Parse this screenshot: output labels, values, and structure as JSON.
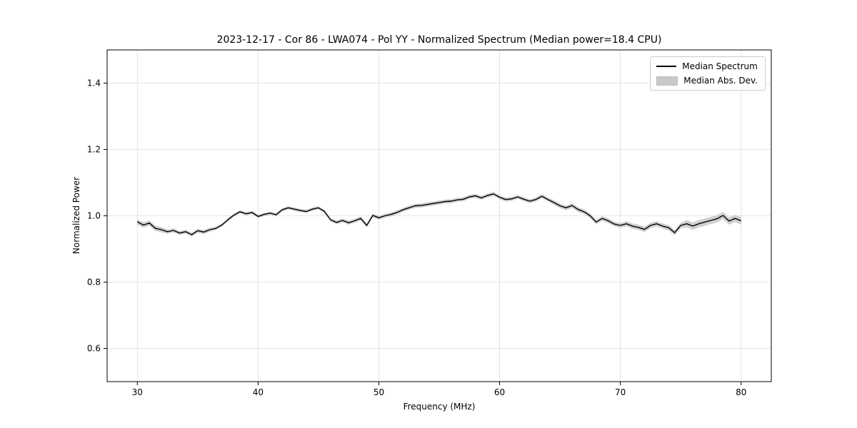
{
  "chart_data": {
    "type": "line",
    "title": "2023-12-17 - Cor 86 - LWA074 - Pol YY - Normalized Spectrum (Median power=18.4 CPU)",
    "xlabel": "Frequency (MHz)",
    "ylabel": "Normalized Power",
    "xlim": [
      27.5,
      82.5
    ],
    "ylim": [
      0.5,
      1.5
    ],
    "xtick_values": [
      30,
      40,
      50,
      60,
      70,
      80
    ],
    "xtick_labels": [
      "30",
      "40",
      "50",
      "60",
      "70",
      "80"
    ],
    "ytick_values": [
      0.6,
      0.8,
      1.0,
      1.2,
      1.4
    ],
    "ytick_labels": [
      "0.6",
      "0.8",
      "1.0",
      "1.2",
      "1.4"
    ],
    "grid": true,
    "legend_position": "upper right",
    "series": [
      {
        "name": "Median Spectrum",
        "kind": "line",
        "color": "#000000"
      },
      {
        "name": "Median Abs. Dev.",
        "kind": "band",
        "color": "#c8c8c8"
      }
    ],
    "x_start": 30,
    "x_step": 0.5,
    "values": [
      0.982,
      0.972,
      0.978,
      0.962,
      0.958,
      0.952,
      0.956,
      0.948,
      0.952,
      0.943,
      0.955,
      0.951,
      0.958,
      0.962,
      0.972,
      0.988,
      1.002,
      1.012,
      1.006,
      1.01,
      0.998,
      1.004,
      1.008,
      1.003,
      1.018,
      1.024,
      1.02,
      1.016,
      1.013,
      1.02,
      1.024,
      1.013,
      0.988,
      0.98,
      0.986,
      0.979,
      0.985,
      0.992,
      0.971,
      1.001,
      0.994,
      1.0,
      1.004,
      1.01,
      1.018,
      1.024,
      1.03,
      1.031,
      1.034,
      1.037,
      1.04,
      1.043,
      1.044,
      1.048,
      1.05,
      1.057,
      1.06,
      1.054,
      1.061,
      1.066,
      1.056,
      1.049,
      1.051,
      1.057,
      1.05,
      1.044,
      1.049,
      1.059,
      1.049,
      1.04,
      1.03,
      1.024,
      1.031,
      1.019,
      1.012,
      1.0,
      0.981,
      0.992,
      0.985,
      0.975,
      0.971,
      0.976,
      0.969,
      0.965,
      0.959,
      0.971,
      0.976,
      0.969,
      0.964,
      0.949,
      0.971,
      0.976,
      0.969,
      0.976,
      0.981,
      0.986,
      0.991,
      1.001,
      0.984,
      0.992,
      0.985
    ],
    "mad_segments": [
      [
        27.5,
        32,
        0.008
      ],
      [
        32,
        36,
        0.006
      ],
      [
        36,
        46,
        0.005
      ],
      [
        46,
        52,
        0.006
      ],
      [
        52,
        64,
        0.006
      ],
      [
        64,
        70,
        0.007
      ],
      [
        70,
        75,
        0.008
      ],
      [
        75,
        82.5,
        0.011
      ]
    ],
    "colors": {
      "line": "#000000",
      "band": "#c8c8c8",
      "grid": "#dcdcdc",
      "spine": "#000000"
    }
  }
}
